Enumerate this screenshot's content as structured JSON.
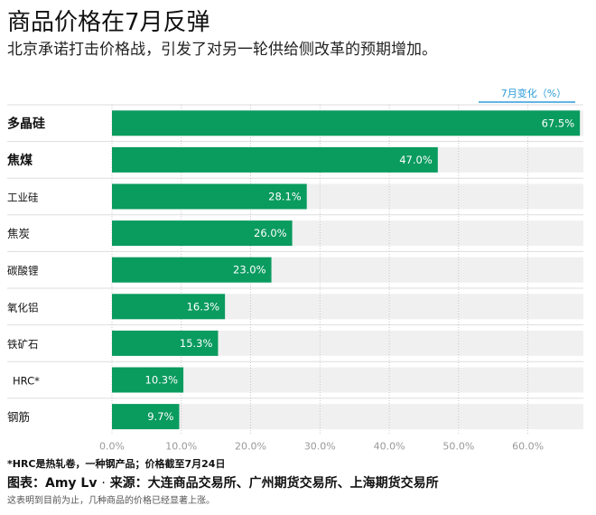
{
  "header": {
    "title": "商品价格在7月反弹",
    "subtitle": "北京承诺打击价格战，引发了对另一轮供给侧改革的预期增加。"
  },
  "chart_data": {
    "type": "bar",
    "orientation": "horizontal",
    "legend_label": "7月变化（%）",
    "categories": [
      "多晶硅",
      "焦煤",
      "工业硅",
      "焦炭",
      "碳酸锂",
      "氧化铝",
      "铁矿石",
      "HRC*",
      "钢筋"
    ],
    "values": [
      67.5,
      47.0,
      28.1,
      26.0,
      23.0,
      16.3,
      15.3,
      10.3,
      9.7
    ],
    "value_labels": [
      "67.5%",
      "47.0%",
      "28.1%",
      "26.0%",
      "23.0%",
      "16.3%",
      "15.3%",
      "10.3%",
      "9.7%"
    ],
    "x_ticks": [
      0,
      10,
      20,
      30,
      40,
      50,
      60
    ],
    "x_tick_labels": [
      "0.0%",
      "10.0%",
      "20.0%",
      "30.0%",
      "40.0%",
      "50.0%",
      "60.0%"
    ],
    "xlim": [
      0,
      68
    ],
    "grid": true,
    "colors": {
      "bar": "#0a9b5f",
      "track": "#f0f0f0",
      "label_on_bar": "#ffffff",
      "tick": "#999999",
      "legend": "#2d9cdb"
    }
  },
  "footer": {
    "footnote": "*HRC是热轧卷，一种钢产品；价格截至7月24日",
    "credit_chart": "图表：Amy Lv",
    "credit_separator": "·",
    "credit_source": "来源：大连商品交易所、广州期货交易所、上海期货交易所",
    "disclaimer": "这表明到目前为止，几种商品的价格已经显著上涨。"
  }
}
